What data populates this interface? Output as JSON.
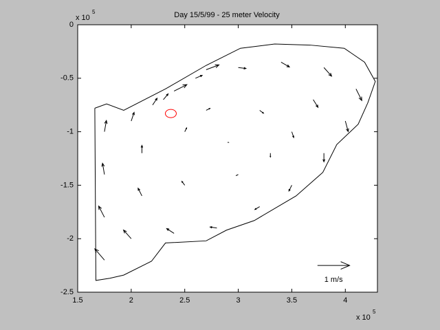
{
  "chart_data": {
    "type": "quiver",
    "title": "Day 15/5/99 - 25 meter Velocity",
    "xlim": [
      1.5,
      4.3
    ],
    "ylim": [
      -2.5,
      0
    ],
    "xticks": [
      1.5,
      2,
      2.5,
      3,
      3.5,
      4
    ],
    "yticks": [
      0,
      -0.5,
      -1,
      -1.5,
      -2,
      -2.5
    ],
    "x_exponent": {
      "base": "x 10",
      "power": "5"
    },
    "y_exponent": {
      "base": "x 10",
      "power": "5"
    },
    "color": "#000000",
    "vectors": {
      "x": [
        2.0,
        2.3,
        2.6,
        3.0,
        3.4,
        3.8,
        4.1,
        4.0,
        3.8,
        3.5,
        3.2,
        2.8,
        2.4,
        2.0,
        1.75,
        1.75,
        1.75,
        1.75,
        2.1,
        2.1,
        2.5,
        2.5,
        2.7,
        3.2,
        3.5,
        3.0,
        2.9,
        3.3,
        3.7,
        2.2,
        2.4,
        2.7
      ],
      "y": [
        -0.9,
        -0.7,
        -0.5,
        -0.4,
        -0.35,
        -0.4,
        -0.6,
        -0.9,
        -1.2,
        -1.5,
        -1.7,
        -1.9,
        -1.95,
        -2.0,
        -2.2,
        -1.8,
        -1.4,
        -1.0,
        -1.2,
        -1.6,
        -1.5,
        -1.0,
        -0.8,
        -0.8,
        -1.0,
        -1.4,
        -1.1,
        -1.2,
        -0.7,
        -0.75,
        -0.62,
        -0.42
      ],
      "u": [
        0.09,
        0.15,
        0.21,
        0.24,
        0.26,
        0.24,
        0.18,
        0.09,
        0,
        -0.09,
        -0.15,
        -0.21,
        -0.23,
        -0.24,
        -0.3,
        -0.18,
        -0.06,
        0.06,
        0,
        -0.12,
        -0.09,
        0.06,
        0.12,
        0.12,
        0.06,
        -0.06,
        0.03,
        0,
        0.15,
        0.14,
        0.4,
        0.4
      ],
      "v": [
        0.27,
        0.18,
        0.09,
        -0.03,
        -0.15,
        -0.27,
        -0.36,
        -0.33,
        -0.27,
        -0.18,
        -0.09,
        0.03,
        0.15,
        0.27,
        0.35,
        0.35,
        0.35,
        0.35,
        0.24,
        0.24,
        0.12,
        0.12,
        0.06,
        -0.09,
        -0.18,
        -0.03,
        0,
        -0.12,
        -0.24,
        0.21,
        0.2,
        0.15
      ]
    },
    "boundary": {
      "x": [
        1.66,
        1.77,
        1.93,
        2.32,
        2.7,
        3.02,
        3.34,
        3.67,
        3.99,
        4.18,
        4.28,
        4.21,
        4.12,
        3.92,
        3.79,
        3.54,
        3.15,
        2.89,
        2.7,
        2.32,
        2.19,
        1.93,
        1.8,
        1.67,
        1.66
      ],
      "y": [
        -0.78,
        -0.74,
        -0.8,
        -0.6,
        -0.38,
        -0.22,
        -0.18,
        -0.19,
        -0.22,
        -0.35,
        -0.53,
        -0.73,
        -0.93,
        -1.12,
        -1.38,
        -1.6,
        -1.83,
        -1.92,
        -2.02,
        -2.04,
        -2.21,
        -2.34,
        -2.37,
        -2.39,
        -0.78
      ]
    },
    "marker": {
      "x": 2.37,
      "y": -0.83,
      "color": "#ff0000"
    },
    "scale_arrow": {
      "x": 3.74,
      "y": -2.25,
      "value": 1,
      "length": 0.3,
      "label": "1 m/s"
    }
  }
}
